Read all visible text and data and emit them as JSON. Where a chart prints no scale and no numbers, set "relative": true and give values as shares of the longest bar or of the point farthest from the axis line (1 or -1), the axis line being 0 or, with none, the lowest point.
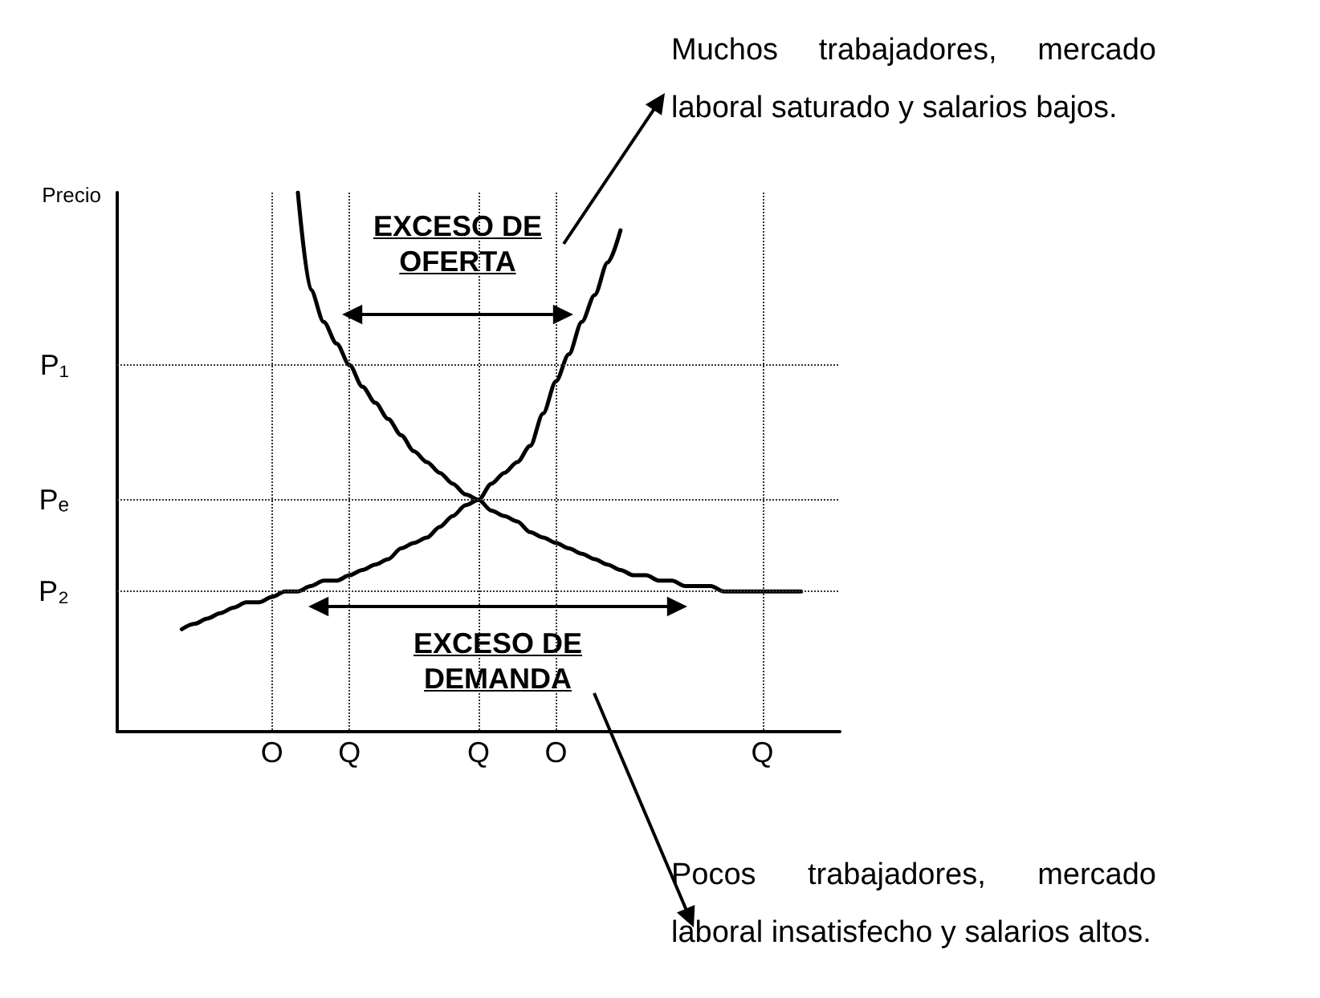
{
  "chart_data": {
    "type": "line",
    "relative": true,
    "ylabel": "Precio",
    "grid": "x",
    "marker": "none",
    "line_style": "solid",
    "categories": [
      null,
      null,
      null,
      null,
      null,
      null,
      null,
      null,
      null,
      null,
      null,
      null,
      "O",
      null,
      null,
      null,
      null,
      null,
      "Q",
      null,
      null,
      null,
      null,
      null,
      null,
      null,
      null,
      null,
      "Q",
      null,
      null,
      null,
      null,
      null,
      "O",
      null,
      null,
      null,
      null,
      null,
      null,
      null,
      null,
      null,
      null,
      null,
      null,
      null,
      null,
      null,
      "Q",
      null,
      null,
      null,
      null,
      null,
      null
    ],
    "series": [
      {
        "color": "#000000",
        "values": [
          null,
          null,
          null,
          null,
          null,
          0.19,
          0.2,
          0.21,
          0.22,
          0.23,
          0.24,
          0.24,
          0.25,
          0.26,
          0.26,
          0.27,
          0.28,
          0.28,
          0.29,
          0.3,
          0.31,
          0.32,
          0.34,
          0.35,
          0.36,
          0.38,
          0.4,
          0.42,
          0.43,
          0.46,
          0.48,
          0.5,
          0.53,
          0.59,
          0.65,
          0.7,
          0.76,
          0.81,
          0.87,
          0.93,
          null,
          null,
          null,
          null,
          null,
          null,
          null,
          null,
          null,
          null,
          null,
          null,
          null,
          null,
          null,
          null,
          null
        ]
      },
      {
        "color": "#000000",
        "values": [
          null,
          null,
          null,
          null,
          null,
          null,
          null,
          null,
          null,
          null,
          null,
          null,
          null,
          null,
          1,
          0.82,
          0.76,
          0.72,
          0.68,
          0.64,
          0.61,
          0.58,
          0.55,
          0.52,
          0.5,
          0.48,
          0.46,
          0.44,
          0.43,
          0.41,
          0.4,
          0.39,
          0.37,
          0.36,
          0.35,
          0.34,
          0.33,
          0.32,
          0.31,
          0.3,
          0.29,
          0.29,
          0.28,
          0.28,
          0.27,
          0.27,
          0.27,
          0.26,
          0.26,
          0.26,
          0.26,
          0.26,
          0.26,
          0.26,
          null,
          null,
          null
        ]
      }
    ],
    "ref_lines": [
      {
        "axis": "y",
        "value": 0.68,
        "label": "P₁",
        "line_style": "dotted"
      },
      {
        "axis": "y",
        "value": 0.43,
        "label": "Pₑ",
        "line_style": "dotted"
      },
      {
        "axis": "y",
        "value": 0.26,
        "label": "P₂",
        "line_style": "dotted"
      }
    ],
    "annotations": [
      "EXCESO DE OFERTA",
      "EXCESO DE DEMANDA",
      "Muchos trabajadores, mercado laboral saturado y salarios bajos.",
      "Pocos trabajadores, mercado laboral insatisfecho y salarios altos."
    ]
  }
}
